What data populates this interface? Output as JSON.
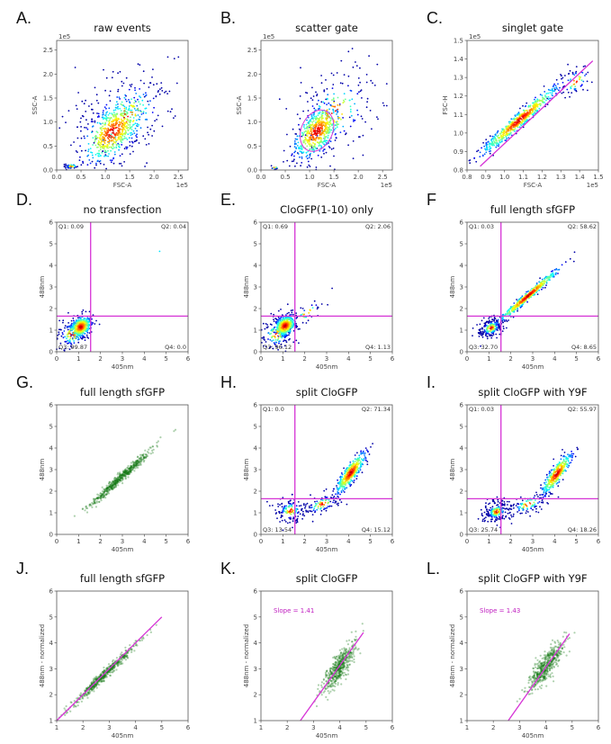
{
  "colors": {
    "gate": "#d633d6",
    "density": "jet",
    "green": "#0a7a0a",
    "axis": "#555555"
  },
  "chart_data": [
    {
      "panel": "A.",
      "title": "raw events",
      "type": "scatter",
      "xlabel": "FSC-A",
      "ylabel": "SSC-A",
      "offset_x": "1e5",
      "offset_y": "1e5",
      "xlim": [
        0,
        2.7
      ],
      "ylim": [
        0,
        2.7
      ],
      "xticks": [
        "0.0",
        "0.5",
        "1.0",
        "1.5",
        "2.0",
        "2.5"
      ],
      "yticks": [
        "0.0",
        "0.5",
        "1.0",
        "1.5",
        "2.0",
        "2.5"
      ],
      "tick_step": 0.5,
      "tick_start": 0,
      "color_mode": "density",
      "populations": [
        {
          "n": 520,
          "mean": [
            1.15,
            0.8
          ],
          "sd": [
            0.28,
            0.3
          ],
          "r": 0.55
        },
        {
          "n": 260,
          "mean": [
            1.4,
            1.1
          ],
          "sd": [
            0.55,
            0.55
          ],
          "r": 0.4
        },
        {
          "n": 40,
          "mean": [
            0.3,
            0.08
          ],
          "sd": [
            0.1,
            0.03
          ],
          "r": 0.3
        }
      ]
    },
    {
      "panel": "B.",
      "title": "scatter gate",
      "type": "scatter",
      "xlabel": "FSC-A",
      "ylabel": "SSC-A",
      "offset_x": "1e5",
      "offset_y": "1e5",
      "xlim": [
        0,
        2.7
      ],
      "ylim": [
        0,
        2.7
      ],
      "xticks": [
        "0.0",
        "0.5",
        "1.0",
        "1.5",
        "2.0",
        "2.5"
      ],
      "yticks": [
        "0.0",
        "0.5",
        "1.0",
        "1.5",
        "2.0",
        "2.5"
      ],
      "tick_step": 0.5,
      "tick_start": 0,
      "color_mode": "density",
      "gate_ellipse": {
        "center": [
          1.15,
          0.82
        ],
        "radii": [
          0.32,
          0.45
        ],
        "angle": 25
      },
      "populations": [
        {
          "n": 500,
          "mean": [
            1.15,
            0.8
          ],
          "sd": [
            0.22,
            0.26
          ],
          "r": 0.55
        },
        {
          "n": 220,
          "mean": [
            1.5,
            1.2
          ],
          "sd": [
            0.5,
            0.5
          ],
          "r": 0.35
        },
        {
          "n": 10,
          "mean": [
            0.28,
            0.05
          ],
          "sd": [
            0.05,
            0.02
          ],
          "r": 0
        }
      ]
    },
    {
      "panel": "C.",
      "title": "singlet gate",
      "type": "scatter",
      "xlabel": "FSC-A",
      "ylabel": "FSC-H",
      "offset_x": "1e5",
      "offset_y": "1e5",
      "xlim": [
        0.8,
        1.5
      ],
      "ylim": [
        0.8,
        1.5
      ],
      "xticks": [
        "0.8",
        "0.9",
        "1.0",
        "1.1",
        "1.2",
        "1.3",
        "1.4",
        "1.5"
      ],
      "yticks": [
        "0.8",
        "0.9",
        "1.0",
        "1.1",
        "1.2",
        "1.3",
        "1.4",
        "1.5"
      ],
      "tick_step": 0.1,
      "tick_start": 0.8,
      "color_mode": "density",
      "gate_line": [
        [
          0.87,
          0.82
        ],
        [
          1.47,
          1.39
        ]
      ],
      "populations": [
        {
          "n": 600,
          "mean": [
            1.08,
            1.07
          ],
          "sd": [
            0.1,
            0.09
          ],
          "r": 0.97
        },
        {
          "n": 60,
          "mean": [
            1.38,
            1.28
          ],
          "sd": [
            0.05,
            0.05
          ],
          "r": 0.5
        }
      ]
    },
    {
      "panel": "D.",
      "title": "no transfection",
      "type": "scatter",
      "xlabel": "405nm",
      "ylabel": "488nm",
      "xlim": [
        0,
        6
      ],
      "ylim": [
        0,
        6
      ],
      "xticks": [
        "0",
        "1",
        "2",
        "3",
        "4",
        "5",
        "6"
      ],
      "yticks": [
        "0",
        "1",
        "2",
        "3",
        "4",
        "5",
        "6"
      ],
      "tick_step": 1,
      "tick_start": 0,
      "color_mode": "density",
      "quadrant_gate": {
        "x": 1.55,
        "y": 1.65
      },
      "quadrants": {
        "Q1": "Q1: 0.09",
        "Q2": "Q2: 0.04",
        "Q3": "Q3: 99.87",
        "Q4": "Q4: 0.0"
      },
      "populations": [
        {
          "n": 450,
          "mean": [
            1.1,
            1.15
          ],
          "sd": [
            0.22,
            0.22
          ],
          "r": 0.3
        },
        {
          "n": 120,
          "mean": [
            0.7,
            0.8
          ],
          "sd": [
            0.4,
            0.4
          ],
          "r": 0
        },
        {
          "n": 1,
          "mean": [
            4.7,
            4.65
          ],
          "sd": [
            0,
            0
          ],
          "r": 0
        }
      ]
    },
    {
      "panel": "E.",
      "title": "CloGFP(1-10)  only",
      "type": "scatter",
      "xlabel": "405nm",
      "ylabel": "488nm",
      "xlim": [
        0,
        6
      ],
      "ylim": [
        0,
        6
      ],
      "xticks": [
        "0",
        "1",
        "2",
        "3",
        "4",
        "5",
        "6"
      ],
      "yticks": [
        "0",
        "1",
        "2",
        "3",
        "4",
        "5",
        "6"
      ],
      "tick_step": 1,
      "tick_start": 0,
      "color_mode": "density",
      "quadrant_gate": {
        "x": 1.55,
        "y": 1.65
      },
      "quadrants": {
        "Q1": "Q1: 0.69",
        "Q2": "Q2: 2.06",
        "Q3": "Q3: 96.12",
        "Q4": "Q4: 1.13"
      },
      "populations": [
        {
          "n": 450,
          "mean": [
            1.1,
            1.2
          ],
          "sd": [
            0.22,
            0.22
          ],
          "r": 0.3
        },
        {
          "n": 120,
          "mean": [
            0.7,
            0.8
          ],
          "sd": [
            0.4,
            0.4
          ],
          "r": 0
        },
        {
          "n": 40,
          "mean": [
            2.1,
            1.8
          ],
          "sd": [
            0.4,
            0.35
          ],
          "r": 0.8
        }
      ]
    },
    {
      "panel": "F",
      "title": "full length sfGFP",
      "type": "scatter",
      "xlabel": "405nm",
      "ylabel": "488nm",
      "xlim": [
        0,
        6
      ],
      "ylim": [
        0,
        6
      ],
      "xticks": [
        "0",
        "1",
        "2",
        "3",
        "4",
        "5",
        "6"
      ],
      "yticks": [
        "0",
        "1",
        "2",
        "3",
        "4",
        "5",
        "6"
      ],
      "tick_step": 1,
      "tick_start": 0,
      "color_mode": "density",
      "quadrant_gate": {
        "x": 1.55,
        "y": 1.65
      },
      "quadrants": {
        "Q1": "Q1: 0.03",
        "Q2": "Q2: 58.62",
        "Q3": "Q3: 32.70",
        "Q4": "Q4: 8.65"
      },
      "populations": [
        {
          "n": 450,
          "mean": [
            2.8,
            2.6
          ],
          "sd": [
            0.7,
            0.62
          ],
          "r": 0.985
        },
        {
          "n": 200,
          "mean": [
            1.1,
            1.1
          ],
          "sd": [
            0.3,
            0.25
          ],
          "r": 0.3
        }
      ]
    },
    {
      "panel": "G.",
      "title": "full length sfGFP",
      "type": "scatter",
      "xlabel": "405nm",
      "ylabel": "488nm",
      "xlim": [
        0,
        6
      ],
      "ylim": [
        0,
        6
      ],
      "xticks": [
        "0",
        "1",
        "2",
        "3",
        "4",
        "5",
        "6"
      ],
      "yticks": [
        "0",
        "1",
        "2",
        "3",
        "4",
        "5",
        "6"
      ],
      "tick_step": 1,
      "tick_start": 0,
      "color_mode": "green",
      "populations": [
        {
          "n": 550,
          "mean": [
            2.9,
            2.6
          ],
          "sd": [
            0.7,
            0.65
          ],
          "r": 0.985
        }
      ]
    },
    {
      "panel": "H.",
      "title": "split CloGFP",
      "type": "scatter",
      "xlabel": "405nm",
      "ylabel": "488nm",
      "xlim": [
        0,
        6
      ],
      "ylim": [
        0,
        6
      ],
      "xticks": [
        "0",
        "1",
        "2",
        "3",
        "4",
        "5",
        "6"
      ],
      "yticks": [
        "0",
        "1",
        "2",
        "3",
        "4",
        "5",
        "6"
      ],
      "tick_step": 1,
      "tick_start": 0,
      "color_mode": "density",
      "quadrant_gate": {
        "x": 1.55,
        "y": 1.65
      },
      "quadrants": {
        "Q1": "Q1: 0.0",
        "Q2": "Q2: 71.34",
        "Q3": "Q3: 13.54",
        "Q4": "Q4: 15.12"
      },
      "populations": [
        {
          "n": 420,
          "mean": [
            4.1,
            2.85
          ],
          "sd": [
            0.32,
            0.45
          ],
          "r": 0.85
        },
        {
          "n": 130,
          "mean": [
            1.35,
            1.1
          ],
          "sd": [
            0.35,
            0.3
          ],
          "r": 0.1
        },
        {
          "n": 100,
          "mean": [
            2.8,
            1.4
          ],
          "sd": [
            0.5,
            0.3
          ],
          "r": 0.6
        }
      ]
    },
    {
      "panel": "I.",
      "title": "split CloGFP with Y9F",
      "type": "scatter",
      "xlabel": "405nm",
      "ylabel": "488nm",
      "xlim": [
        0,
        6
      ],
      "ylim": [
        0,
        6
      ],
      "xticks": [
        "0",
        "1",
        "2",
        "3",
        "4",
        "5",
        "6"
      ],
      "yticks": [
        "0",
        "1",
        "2",
        "3",
        "4",
        "5",
        "6"
      ],
      "tick_step": 1,
      "tick_start": 0,
      "color_mode": "density",
      "quadrant_gate": {
        "x": 1.55,
        "y": 1.65
      },
      "quadrants": {
        "Q1": "Q1: 0.03",
        "Q2": "Q2: 55.97",
        "Q3": "Q3: 25.74",
        "Q4": "Q4: 18.26"
      },
      "populations": [
        {
          "n": 380,
          "mean": [
            4.1,
            2.8
          ],
          "sd": [
            0.32,
            0.45
          ],
          "r": 0.85
        },
        {
          "n": 200,
          "mean": [
            1.35,
            1.05
          ],
          "sd": [
            0.3,
            0.25
          ],
          "r": 0.2
        },
        {
          "n": 110,
          "mean": [
            2.8,
            1.4
          ],
          "sd": [
            0.5,
            0.3
          ],
          "r": 0.6
        }
      ]
    },
    {
      "panel": "J.",
      "title": "full length sfGFP",
      "type": "scatter",
      "xlabel": "405nm",
      "ylabel": "488nm - normalized",
      "xlim": [
        1,
        6
      ],
      "ylim": [
        1,
        6
      ],
      "xticks": [
        "1",
        "2",
        "3",
        "4",
        "5",
        "6"
      ],
      "yticks": [
        "1",
        "2",
        "3",
        "4",
        "5",
        "6"
      ],
      "tick_step": 1,
      "tick_start": 1,
      "color_mode": "green",
      "fit_line": [
        [
          1,
          1
        ],
        [
          5,
          5
        ]
      ],
      "populations": [
        {
          "n": 550,
          "mean": [
            2.8,
            2.75
          ],
          "sd": [
            0.6,
            0.6
          ],
          "r": 0.985
        }
      ]
    },
    {
      "panel": "K.",
      "title": "split CloGFP",
      "type": "scatter",
      "xlabel": "405nm",
      "ylabel": "488nm - normalized",
      "xlim": [
        1,
        6
      ],
      "ylim": [
        1,
        6
      ],
      "xticks": [
        "1",
        "2",
        "3",
        "4",
        "5",
        "6"
      ],
      "yticks": [
        "1",
        "2",
        "3",
        "4",
        "5",
        "6"
      ],
      "tick_step": 1,
      "tick_start": 1,
      "color_mode": "green",
      "fit_line": [
        [
          2.5,
          1
        ],
        [
          4.9,
          4.4
        ]
      ],
      "annotation": "Slope = 1.41",
      "populations": [
        {
          "n": 500,
          "mean": [
            4.0,
            3.1
          ],
          "sd": [
            0.3,
            0.45
          ],
          "r": 0.82
        }
      ]
    },
    {
      "panel": "L.",
      "title": "split CloGFP with Y9F",
      "type": "scatter",
      "xlabel": "405nm",
      "ylabel": "488nm - normalized",
      "xlim": [
        1,
        6
      ],
      "ylim": [
        1,
        6
      ],
      "xticks": [
        "1",
        "2",
        "3",
        "4",
        "5",
        "6"
      ],
      "yticks": [
        "1",
        "2",
        "3",
        "4",
        "5",
        "6"
      ],
      "tick_step": 1,
      "tick_start": 1,
      "color_mode": "green",
      "fit_line": [
        [
          2.57,
          1
        ],
        [
          4.9,
          4.35
        ]
      ],
      "annotation": "Slope = 1.43",
      "populations": [
        {
          "n": 500,
          "mean": [
            4.0,
            3.1
          ],
          "sd": [
            0.32,
            0.45
          ],
          "r": 0.82
        }
      ]
    }
  ]
}
